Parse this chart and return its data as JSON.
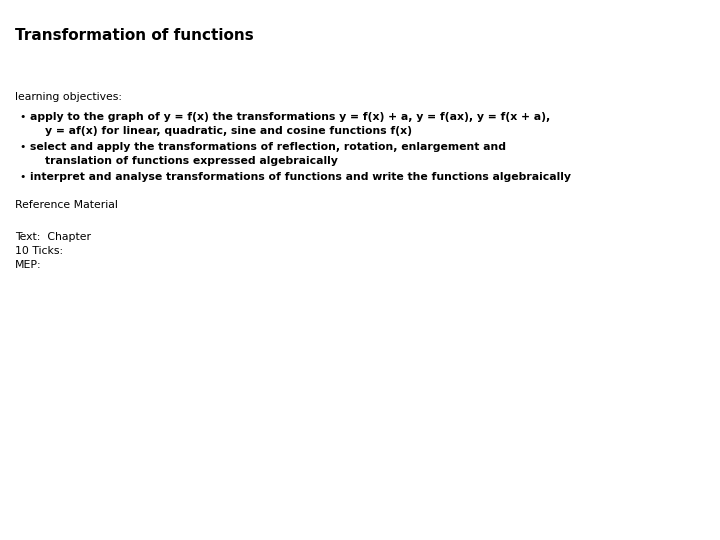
{
  "title": "Transformation of functions",
  "title_fontsize": 11,
  "body_fontsize": 7.8,
  "background_color": "#ffffff",
  "text_color": "#000000",
  "learning_objectives_label": "learning objectives:",
  "bullet_line1a": "apply to the graph of y = f(x) the transformations y = f(x) + a, y = f(ax), y = f(x + a),",
  "bullet_line1b": "    y = af(x) for linear, quadratic, sine and cosine functions f(x)",
  "bullet_line2a": "select and apply the transformations of reflection, rotation, enlargement and",
  "bullet_line2b": "    translation of functions expressed algebraically",
  "bullet_line3": "interpret and analyse transformations of functions and write the functions algebraically",
  "reference_label": "Reference Material",
  "text_line1": "Text:  Chapter",
  "text_line2": "10 Ticks:",
  "text_line3": "MEP:",
  "bullet_char": "•"
}
